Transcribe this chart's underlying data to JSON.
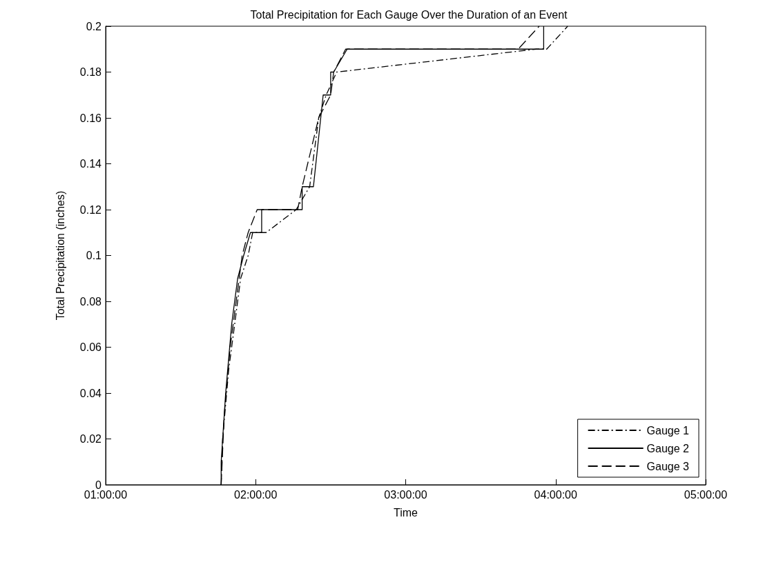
{
  "chart_data": {
    "type": "line",
    "title": "Total Precipitation for Each Gauge Over the Duration of an Event",
    "xlabel": "Time",
    "ylabel": "Total Precipitation (inches)",
    "xlim": [
      1,
      5
    ],
    "xticks": [
      {
        "value": 1,
        "label": "01:00:00"
      },
      {
        "value": 2,
        "label": "02:00:00"
      },
      {
        "value": 3,
        "label": "03:00:00"
      },
      {
        "value": 4,
        "label": "04:00:00"
      },
      {
        "value": 5,
        "label": "05:00:00"
      }
    ],
    "ylim": [
      0,
      0.2
    ],
    "yticks": [
      0,
      0.02,
      0.04,
      0.06,
      0.08,
      0.1,
      0.12,
      0.14,
      0.16,
      0.18,
      0.2
    ],
    "grid": false,
    "legend": "bottom right",
    "marker": "none",
    "series": [
      {
        "name": "Gauge 1",
        "color": "#000000",
        "line_style": "dashdot",
        "x": [
          1.77,
          1.78,
          1.82,
          1.86,
          1.9,
          1.95,
          1.98,
          2.07,
          2.27,
          2.36,
          2.42,
          2.47,
          2.54,
          3.87,
          3.94,
          4.08
        ],
        "values": [
          0,
          0.02,
          0.05,
          0.07,
          0.09,
          0.1,
          0.11,
          0.11,
          0.12,
          0.13,
          0.16,
          0.17,
          0.18,
          0.19,
          0.19,
          0.2
        ]
      },
      {
        "name": "Gauge 2",
        "color": "#000000",
        "line_style": "solid",
        "x": [
          1.77,
          1.77,
          1.8,
          1.84,
          1.88,
          1.92,
          1.965,
          1.965,
          2.04,
          2.04,
          2.31,
          2.31,
          2.385,
          2.45,
          2.45,
          2.5,
          2.5,
          2.52,
          2.61,
          3.92,
          3.92
        ],
        "values": [
          0,
          0.01,
          0.04,
          0.07,
          0.09,
          0.1,
          0.11,
          0.11,
          0.11,
          0.12,
          0.12,
          0.13,
          0.13,
          0.17,
          0.17,
          0.17,
          0.18,
          0.18,
          0.19,
          0.19,
          0.2
        ]
      },
      {
        "name": "Gauge 3",
        "color": "#000000",
        "line_style": "dashed",
        "x": [
          1.77,
          1.79,
          1.83,
          1.87,
          1.91,
          1.95,
          2.01,
          2.28,
          2.31,
          2.42,
          2.5,
          2.52,
          2.6,
          3.75,
          3.89
        ],
        "values": [
          0,
          0.03,
          0.06,
          0.08,
          0.1,
          0.11,
          0.12,
          0.12,
          0.13,
          0.16,
          0.17,
          0.18,
          0.19,
          0.19,
          0.2
        ]
      }
    ]
  }
}
